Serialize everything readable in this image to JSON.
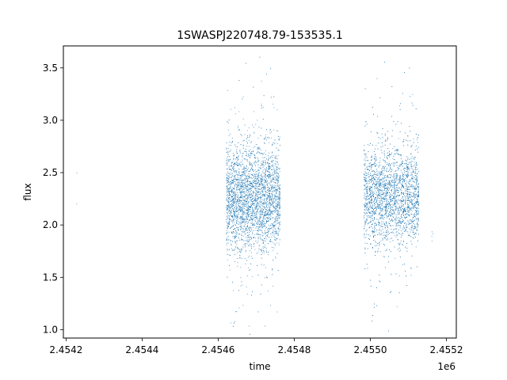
{
  "chart_data": {
    "type": "scatter",
    "title": "1SWASPJ220748.79-153535.1",
    "xlabel": "time",
    "ylabel": "flux",
    "x_offset_label": "1e6",
    "xlim": [
      2454193,
      2455226
    ],
    "ylim": [
      0.92,
      3.71
    ],
    "x_ticks": [
      2454200,
      2454400,
      2454600,
      2454800,
      2455000,
      2455200
    ],
    "x_tick_labels": [
      "2.4542",
      "2.4544",
      "2.4546",
      "2.4548",
      "2.4550",
      "2.4552"
    ],
    "y_ticks": [
      1.0,
      1.5,
      2.0,
      2.5,
      3.0,
      3.5
    ],
    "y_tick_labels": [
      "1.0",
      "1.5",
      "2.0",
      "2.5",
      "3.0",
      "3.5"
    ],
    "grid": false,
    "legend": "none",
    "marker_color": "#1f77b4",
    "series": [
      {
        "segments": [
          {
            "t_start": 2454226,
            "t_end": 2454228,
            "flux_center": 2.4,
            "flux_spread": 0.13,
            "n_points": 2
          },
          {
            "t_start": 2454621,
            "t_end": 2454763,
            "flux_center": 2.26,
            "flux_spread": 0.25,
            "n_points": 4200
          },
          {
            "t_start": 2454983,
            "t_end": 2455128,
            "flux_center": 2.28,
            "flux_spread": 0.23,
            "n_points": 3800
          },
          {
            "t_start": 2455160,
            "t_end": 2455165,
            "flux_center": 1.9,
            "flux_spread": 0.05,
            "n_points": 4
          }
        ]
      }
    ]
  }
}
